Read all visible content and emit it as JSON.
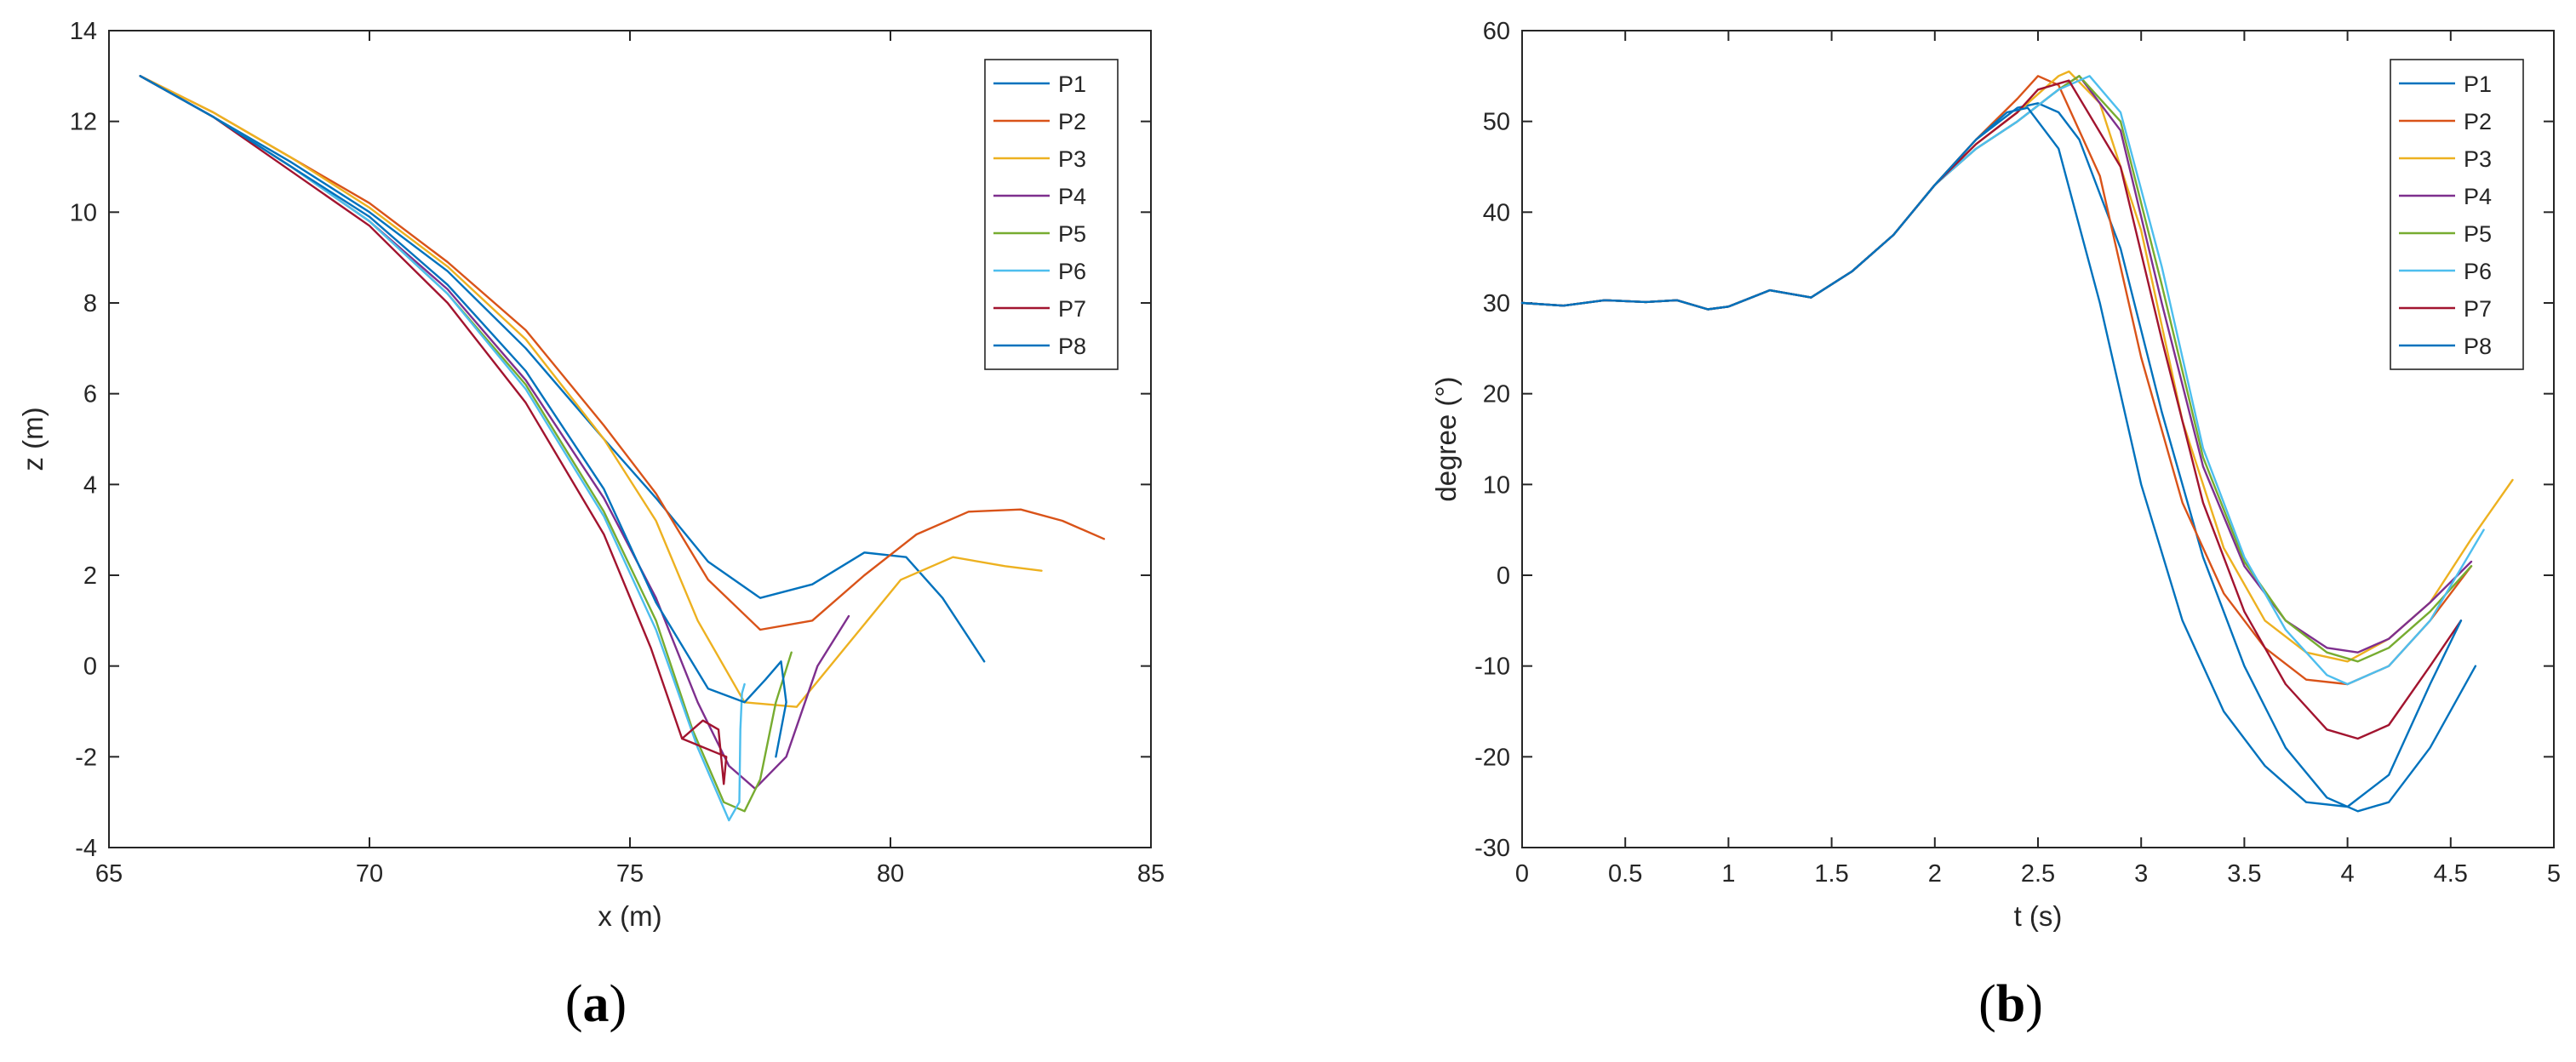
{
  "colors": {
    "P1": "#0072BD",
    "P2": "#D95319",
    "P3": "#EDB120",
    "P4": "#7E2F8E",
    "P5": "#77AC30",
    "P6": "#4DBEEE",
    "P7": "#A2142F",
    "P8": "#0072BD"
  },
  "chart_data": [
    {
      "type": "line",
      "panel_label": "a",
      "xlabel": "x (m)",
      "ylabel": "z (m)",
      "xlim": [
        65,
        85
      ],
      "ylim": [
        -4,
        14
      ],
      "xticks": [
        65,
        70,
        75,
        80,
        85
      ],
      "yticks": [
        -4,
        -2,
        0,
        2,
        4,
        6,
        8,
        10,
        12,
        14
      ],
      "grid": false,
      "legend": "top-right",
      "series": [
        {
          "name": "P1",
          "x": [
            65.6,
            67,
            68.5,
            70,
            71.5,
            73,
            74.5,
            75.5,
            76.5,
            77.5,
            78.5,
            79.5,
            80.3,
            81,
            81.8
          ],
          "y": [
            13,
            12.1,
            11.1,
            10,
            8.7,
            7,
            5,
            3.7,
            2.3,
            1.5,
            1.8,
            2.5,
            2.4,
            1.5,
            0.1
          ]
        },
        {
          "name": "P2",
          "x": [
            65.6,
            67,
            68.5,
            70,
            71.5,
            73,
            74.5,
            75.5,
            76.5,
            77.5,
            78.5,
            79.5,
            80.5,
            81.5,
            82.5,
            83.3,
            84.1
          ],
          "y": [
            13,
            12.2,
            11.2,
            10.2,
            8.9,
            7.4,
            5.3,
            3.8,
            1.9,
            0.8,
            1.0,
            2.0,
            2.9,
            3.4,
            3.45,
            3.2,
            2.8
          ]
        },
        {
          "name": "P3",
          "x": [
            65.6,
            67,
            68.5,
            70,
            71.5,
            73,
            74.5,
            75.5,
            76.3,
            77.2,
            78.2,
            79.2,
            80.2,
            81.2,
            82.2,
            82.9
          ],
          "y": [
            13,
            12.2,
            11.2,
            10.1,
            8.8,
            7.2,
            5.0,
            3.2,
            1.0,
            -0.8,
            -0.9,
            0.5,
            1.9,
            2.4,
            2.2,
            2.1
          ]
        },
        {
          "name": "P4",
          "x": [
            65.6,
            67,
            68.5,
            70,
            71.5,
            73,
            74.5,
            75.5,
            76.3,
            76.9,
            77.4,
            78,
            78.6,
            79.2
          ],
          "y": [
            13,
            12.1,
            11.0,
            9.8,
            8.3,
            6.3,
            3.7,
            1.5,
            -0.8,
            -2.2,
            -2.7,
            -2.0,
            0.0,
            1.1
          ]
        },
        {
          "name": "P5",
          "x": [
            65.6,
            67,
            68.5,
            70,
            71.5,
            73,
            74.5,
            75.5,
            76.2,
            76.8,
            77.2,
            77.5,
            77.8,
            78.1
          ],
          "y": [
            13,
            12.1,
            11.0,
            9.8,
            8.2,
            6.2,
            3.4,
            1.0,
            -1.4,
            -3.0,
            -3.2,
            -2.5,
            -0.8,
            0.3
          ]
        },
        {
          "name": "P6",
          "x": [
            65.6,
            67,
            68.5,
            70,
            71.5,
            73,
            74.5,
            75.5,
            76.3,
            76.9,
            77.1,
            77.12,
            77.15,
            77.2
          ],
          "y": [
            13,
            12.1,
            11.0,
            9.8,
            8.2,
            6.1,
            3.3,
            0.8,
            -1.8,
            -3.4,
            -3.0,
            -1.4,
            -0.6,
            -0.4
          ]
        },
        {
          "name": "P7",
          "x": [
            65.6,
            67,
            68.5,
            70,
            71.5,
            73,
            74.5,
            75.4,
            76.0,
            76.4,
            76.7,
            76.8,
            76.85,
            76.0
          ],
          "y": [
            13,
            12.1,
            10.9,
            9.7,
            8.0,
            5.8,
            2.9,
            0.4,
            -1.6,
            -1.2,
            -1.4,
            -2.6,
            -2.0,
            -1.6
          ]
        },
        {
          "name": "P8",
          "x": [
            65.6,
            67,
            68.5,
            70,
            71.5,
            73,
            74.5,
            75.5,
            76.5,
            77.2,
            77.6,
            77.9,
            78.0,
            77.8
          ],
          "y": [
            13,
            12.1,
            11.0,
            9.9,
            8.4,
            6.5,
            3.9,
            1.4,
            -0.5,
            -0.8,
            -0.3,
            0.1,
            -0.8,
            -2.0
          ]
        }
      ]
    },
    {
      "type": "line",
      "panel_label": "b",
      "xlabel": "t (s)",
      "ylabel": "degree (°)",
      "xlim": [
        0,
        5
      ],
      "ylim": [
        -30,
        60
      ],
      "xticks": [
        0,
        0.5,
        1,
        1.5,
        2,
        2.5,
        3,
        3.5,
        4,
        4.5,
        5
      ],
      "yticks": [
        -30,
        -20,
        -10,
        0,
        10,
        20,
        30,
        40,
        50,
        60
      ],
      "grid": false,
      "legend": "top-right",
      "series": [
        {
          "name": "P1",
          "x": [
            0,
            0.2,
            0.4,
            0.6,
            0.75,
            0.9,
            1.0,
            1.2,
            1.4,
            1.6,
            1.8,
            2.0,
            2.2,
            2.4,
            2.5,
            2.6,
            2.7,
            2.9,
            3.1,
            3.3,
            3.5,
            3.7,
            3.9,
            4.05,
            4.2,
            4.4,
            4.62
          ],
          "y": [
            30,
            29.7,
            30.3,
            30.1,
            30.3,
            29.3,
            29.6,
            31.4,
            30.6,
            33.5,
            37.5,
            43,
            48,
            51.5,
            52,
            51,
            48,
            36,
            18,
            2,
            -10,
            -19,
            -24.5,
            -26,
            -25,
            -19,
            -10
          ]
        },
        {
          "name": "P2",
          "x": [
            0,
            0.2,
            0.4,
            0.6,
            0.75,
            0.9,
            1.0,
            1.2,
            1.4,
            1.6,
            1.8,
            2.0,
            2.2,
            2.4,
            2.5,
            2.6,
            2.8,
            3.0,
            3.2,
            3.4,
            3.6,
            3.8,
            4.0,
            4.2,
            4.4,
            4.6
          ],
          "y": [
            30,
            29.7,
            30.3,
            30.1,
            30.3,
            29.3,
            29.6,
            31.4,
            30.6,
            33.5,
            37.5,
            43,
            48,
            52.5,
            55,
            54,
            44,
            24,
            8,
            -2,
            -8,
            -11.5,
            -12,
            -10,
            -5,
            1
          ]
        },
        {
          "name": "P3",
          "x": [
            0,
            0.2,
            0.4,
            0.6,
            0.75,
            0.9,
            1.0,
            1.2,
            1.4,
            1.6,
            1.8,
            2.0,
            2.2,
            2.4,
            2.6,
            2.65,
            2.8,
            3.0,
            3.2,
            3.4,
            3.6,
            3.8,
            4.0,
            4.2,
            4.4,
            4.6,
            4.8
          ],
          "y": [
            30,
            29.7,
            30.3,
            30.1,
            30.3,
            29.3,
            29.6,
            31.4,
            30.6,
            33.5,
            37.5,
            43,
            47.5,
            51,
            55,
            55.5,
            52,
            38,
            17,
            3,
            -5,
            -8.5,
            -9.5,
            -7,
            -3,
            4,
            10.5
          ]
        },
        {
          "name": "P4",
          "x": [
            0,
            0.2,
            0.4,
            0.6,
            0.75,
            0.9,
            1.0,
            1.2,
            1.4,
            1.6,
            1.8,
            2.0,
            2.2,
            2.4,
            2.6,
            2.7,
            2.9,
            3.1,
            3.3,
            3.5,
            3.7,
            3.9,
            4.05,
            4.2,
            4.4,
            4.6
          ],
          "y": [
            30,
            29.7,
            30.3,
            30.1,
            30.3,
            29.3,
            29.6,
            31.4,
            30.6,
            33.5,
            37.5,
            43,
            47,
            50,
            53.5,
            55,
            49,
            30,
            12,
            1,
            -5,
            -8,
            -8.5,
            -7,
            -3,
            1.5
          ]
        },
        {
          "name": "P5",
          "x": [
            0,
            0.2,
            0.4,
            0.6,
            0.75,
            0.9,
            1.0,
            1.2,
            1.4,
            1.6,
            1.8,
            2.0,
            2.2,
            2.4,
            2.6,
            2.7,
            2.9,
            3.1,
            3.3,
            3.5,
            3.7,
            3.9,
            4.05,
            4.2,
            4.4,
            4.6
          ],
          "y": [
            30,
            29.7,
            30.3,
            30.1,
            30.3,
            29.3,
            29.6,
            31.4,
            30.6,
            33.5,
            37.5,
            43,
            47,
            50,
            53.5,
            55,
            50,
            32,
            13,
            1.5,
            -5,
            -8.5,
            -9.5,
            -8,
            -4,
            1
          ]
        },
        {
          "name": "P6",
          "x": [
            0,
            0.2,
            0.4,
            0.6,
            0.75,
            0.9,
            1.0,
            1.2,
            1.4,
            1.6,
            1.8,
            2.0,
            2.2,
            2.4,
            2.6,
            2.75,
            2.9,
            3.1,
            3.3,
            3.5,
            3.7,
            3.9,
            4.0,
            4.2,
            4.4,
            4.66
          ],
          "y": [
            30,
            29.7,
            30.3,
            30.1,
            30.3,
            29.3,
            29.6,
            31.4,
            30.6,
            33.5,
            37.5,
            43,
            47,
            50,
            53.5,
            55,
            51,
            34,
            14,
            2,
            -6,
            -11,
            -12,
            -10,
            -5,
            5
          ]
        },
        {
          "name": "P7",
          "x": [
            0,
            0.2,
            0.4,
            0.6,
            0.75,
            0.9,
            1.0,
            1.2,
            1.4,
            1.6,
            1.8,
            2.0,
            2.2,
            2.4,
            2.5,
            2.65,
            2.9,
            3.1,
            3.3,
            3.5,
            3.7,
            3.9,
            4.05,
            4.2,
            4.4,
            4.55
          ],
          "y": [
            30,
            29.7,
            30.3,
            30.1,
            30.3,
            29.3,
            29.6,
            31.4,
            30.6,
            33.5,
            37.5,
            43,
            47.5,
            51,
            53.5,
            54.5,
            45,
            26,
            8,
            -4,
            -12,
            -17,
            -18,
            -16.5,
            -10,
            -5
          ]
        },
        {
          "name": "P8",
          "x": [
            0,
            0.2,
            0.4,
            0.6,
            0.75,
            0.9,
            1.0,
            1.2,
            1.4,
            1.6,
            1.8,
            2.0,
            2.2,
            2.35,
            2.45,
            2.6,
            2.8,
            3.0,
            3.2,
            3.4,
            3.6,
            3.8,
            4.0,
            4.2,
            4.4,
            4.55
          ],
          "y": [
            30,
            29.7,
            30.3,
            30.1,
            30.3,
            29.3,
            29.6,
            31.4,
            30.6,
            33.5,
            37.5,
            43,
            48,
            51,
            51.5,
            47,
            30,
            10,
            -5,
            -15,
            -21,
            -25,
            -25.5,
            -22,
            -12,
            -5
          ]
        }
      ]
    }
  ]
}
